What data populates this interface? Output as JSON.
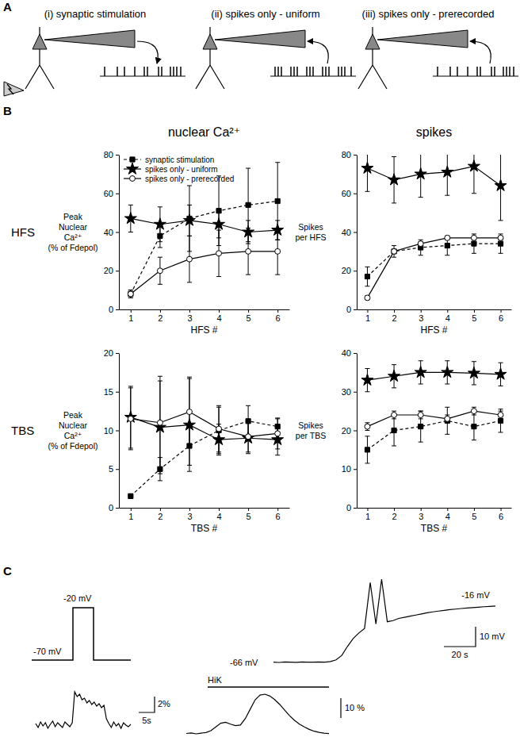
{
  "figure": {
    "panel_labels": [
      "A",
      "B",
      "C"
    ],
    "column_titles": [
      "nuclear Ca²⁺",
      "spikes"
    ],
    "row_labels": [
      "HFS",
      "TBS"
    ]
  },
  "panel_a": {
    "conditions": [
      "(i) synaptic stimulation",
      "(ii) spikes only - uniform",
      "(iii) spikes only - prerecorded"
    ],
    "spike_trains": [
      [
        2,
        18,
        27,
        40,
        52,
        56,
        70,
        74,
        85,
        89,
        93,
        98
      ],
      [
        2,
        6,
        10,
        22,
        26,
        30,
        42,
        46,
        50,
        62,
        66,
        70,
        82,
        86,
        90,
        98
      ],
      [
        2,
        18,
        27,
        40,
        52,
        56,
        70,
        74,
        85,
        89,
        93,
        98
      ]
    ]
  },
  "chart_data": [
    {
      "type": "line",
      "xlabel": "HFS #",
      "ylabel": [
        "Peak",
        "Nuclear",
        "Ca²⁺",
        "(% of Fdepol)"
      ],
      "x": [
        1,
        2,
        3,
        4,
        5,
        6
      ],
      "xlim": [
        0.6,
        6.4
      ],
      "xticks": [
        1,
        2,
        3,
        4,
        5,
        6
      ],
      "ylim": [
        0,
        80
      ],
      "yticks": [
        0,
        20,
        40,
        60,
        80
      ],
      "legend": "top-left",
      "series": [
        {
          "name": "synaptic stimulation",
          "color": "#000000",
          "marker": "square",
          "line_style": "dashed",
          "values": [
            8,
            38,
            47,
            51,
            54,
            56
          ],
          "errors": [
            2,
            6,
            17,
            18,
            19,
            20
          ]
        },
        {
          "name": "spikes only - uniform",
          "color": "#000000",
          "marker": "star",
          "line_style": "solid",
          "values": [
            47,
            44,
            46,
            44,
            40,
            41
          ],
          "errors": [
            7,
            9,
            8,
            7,
            6,
            5
          ]
        },
        {
          "name": "spikes only - prerecorded",
          "color": "#000000",
          "marker": "circle",
          "line_style": "solid",
          "values": [
            8,
            20,
            26,
            29,
            30,
            30
          ],
          "errors": [
            2,
            7,
            12,
            12,
            12,
            12
          ]
        }
      ]
    },
    {
      "type": "line",
      "xlabel": "HFS #",
      "ylabel": [
        "Spikes",
        "per HFS"
      ],
      "x": [
        1,
        2,
        3,
        4,
        5,
        6
      ],
      "xlim": [
        0.6,
        6.4
      ],
      "xticks": [
        1,
        2,
        3,
        4,
        5,
        6
      ],
      "ylim": [
        0,
        80
      ],
      "yticks": [
        0,
        20,
        40,
        60,
        80
      ],
      "series": [
        {
          "color": "#000000",
          "marker": "square",
          "line_style": "dashed",
          "values": [
            17,
            30,
            32,
            33,
            34,
            34
          ],
          "errors": [
            5,
            3,
            4,
            5,
            5,
            5
          ]
        },
        {
          "color": "#000000",
          "marker": "star",
          "line_style": "solid",
          "values": [
            73,
            67,
            70,
            71,
            74,
            64
          ],
          "errors": [
            12,
            12,
            12,
            12,
            14,
            18
          ]
        },
        {
          "color": "#000000",
          "marker": "circle",
          "line_style": "solid",
          "values": [
            6,
            30,
            34,
            37,
            37,
            37
          ],
          "errors": [
            1,
            1,
            1,
            1,
            1,
            1
          ]
        }
      ]
    },
    {
      "type": "line",
      "xlabel": "TBS #",
      "ylabel": [
        "Peak",
        "Nuclear",
        "Ca²⁺",
        "(% of Fdepol)"
      ],
      "x": [
        1,
        2,
        3,
        4,
        5,
        6
      ],
      "xlim": [
        0.6,
        6.4
      ],
      "xticks": [
        1,
        2,
        3,
        4,
        5,
        6
      ],
      "ylim": [
        0,
        20
      ],
      "yticks": [
        0,
        5,
        10,
        15,
        20
      ],
      "series": [
        {
          "color": "#000000",
          "marker": "square",
          "line_style": "dashed",
          "values": [
            1.5,
            5,
            8,
            10,
            11.2,
            10.5
          ],
          "errors": [
            0.3,
            1.5,
            2.5,
            3,
            2,
            1
          ]
        },
        {
          "color": "#000000",
          "marker": "star",
          "line_style": "solid",
          "values": [
            11.7,
            10.4,
            10.7,
            8.8,
            9,
            8.8
          ],
          "errors": [
            4,
            6,
            6,
            2,
            2,
            2
          ]
        },
        {
          "color": "#000000",
          "marker": "circle",
          "line_style": "solid",
          "values": [
            11.5,
            11,
            12.4,
            10.2,
            9.2,
            9.6
          ],
          "errors": [
            4,
            6,
            4.5,
            3,
            2,
            2
          ]
        }
      ]
    },
    {
      "type": "line",
      "xlabel": "TBS #",
      "ylabel": [
        "Spikes",
        "per TBS"
      ],
      "x": [
        1,
        2,
        3,
        4,
        5,
        6
      ],
      "xlim": [
        0.6,
        6.4
      ],
      "xticks": [
        1,
        2,
        3,
        4,
        5,
        6
      ],
      "ylim": [
        0,
        40
      ],
      "yticks": [
        0,
        10,
        20,
        30,
        40
      ],
      "series": [
        {
          "color": "#000000",
          "marker": "square",
          "line_style": "dashed",
          "values": [
            15,
            20,
            21,
            22.5,
            21,
            22.5
          ],
          "errors": [
            3.5,
            4,
            4,
            3.5,
            3.5,
            3
          ]
        },
        {
          "color": "#000000",
          "marker": "star",
          "line_style": "solid",
          "values": [
            33,
            34,
            35,
            35,
            34.8,
            34.5
          ],
          "errors": [
            3,
            3,
            3,
            3,
            3,
            3
          ]
        },
        {
          "color": "#000000",
          "marker": "circle",
          "line_style": "solid",
          "values": [
            21,
            24,
            24,
            23,
            25,
            24
          ],
          "errors": [
            1,
            1,
            1,
            1,
            1,
            1
          ]
        }
      ]
    }
  ],
  "panel_c": {
    "step": {
      "base_label": "-70 mV",
      "step_label": "-20 mV"
    },
    "voltage_trace": {
      "start_label": "-66 mV",
      "end_label": "-16 mV",
      "scale_y_label": "10 mV",
      "scale_x_label": "20 s",
      "values": [
        -66,
        -66.3,
        -65.8,
        -66,
        -66.2,
        -65.9,
        -66,
        -66.1,
        -65.8,
        -66,
        -65.5,
        -64,
        -60,
        -52,
        -45,
        -40,
        -36,
        5,
        -32,
        8,
        -30,
        -29,
        -27,
        -26,
        -25,
        -24,
        -23,
        -22,
        -21.2,
        -20.5,
        -19.8,
        -19.2,
        -18.7,
        -18.2,
        -17.8,
        -17.4,
        -17,
        -16.6,
        -16.3,
        -16
      ]
    },
    "calcium_step_trace": {
      "scale_y_label": "2%",
      "scale_x_label": "5s",
      "values": [
        0.2,
        -0.3,
        0.4,
        -0.1,
        0.3,
        -0.4,
        0.1,
        0.5,
        -0.2,
        0.3,
        0,
        -0.3,
        0.4,
        0.1,
        -0.2,
        0.3,
        4.2,
        3.6,
        3.9,
        3.2,
        3.4,
        2.8,
        3.1,
        2.6,
        2.9,
        2.4,
        2.7,
        2.2,
        2.5,
        0.8,
        0.2,
        -0.3,
        0.4,
        -0.1,
        0.2,
        -0.4,
        0.3,
        0,
        -0.2,
        0.1
      ]
    },
    "calcium_hik_trace": {
      "bar_label": "HiK",
      "scale_y_label": "10 %",
      "values": [
        0,
        0.3,
        -0.2,
        0.2,
        0.5,
        1.5,
        3.5,
        5.5,
        6,
        5,
        4.2,
        4.5,
        8,
        13,
        18,
        20.5,
        21,
        20,
        18,
        15.5,
        12.5,
        9.5,
        7,
        5,
        3.5,
        2.2,
        1.2,
        0.6,
        0.2,
        0
      ]
    }
  }
}
